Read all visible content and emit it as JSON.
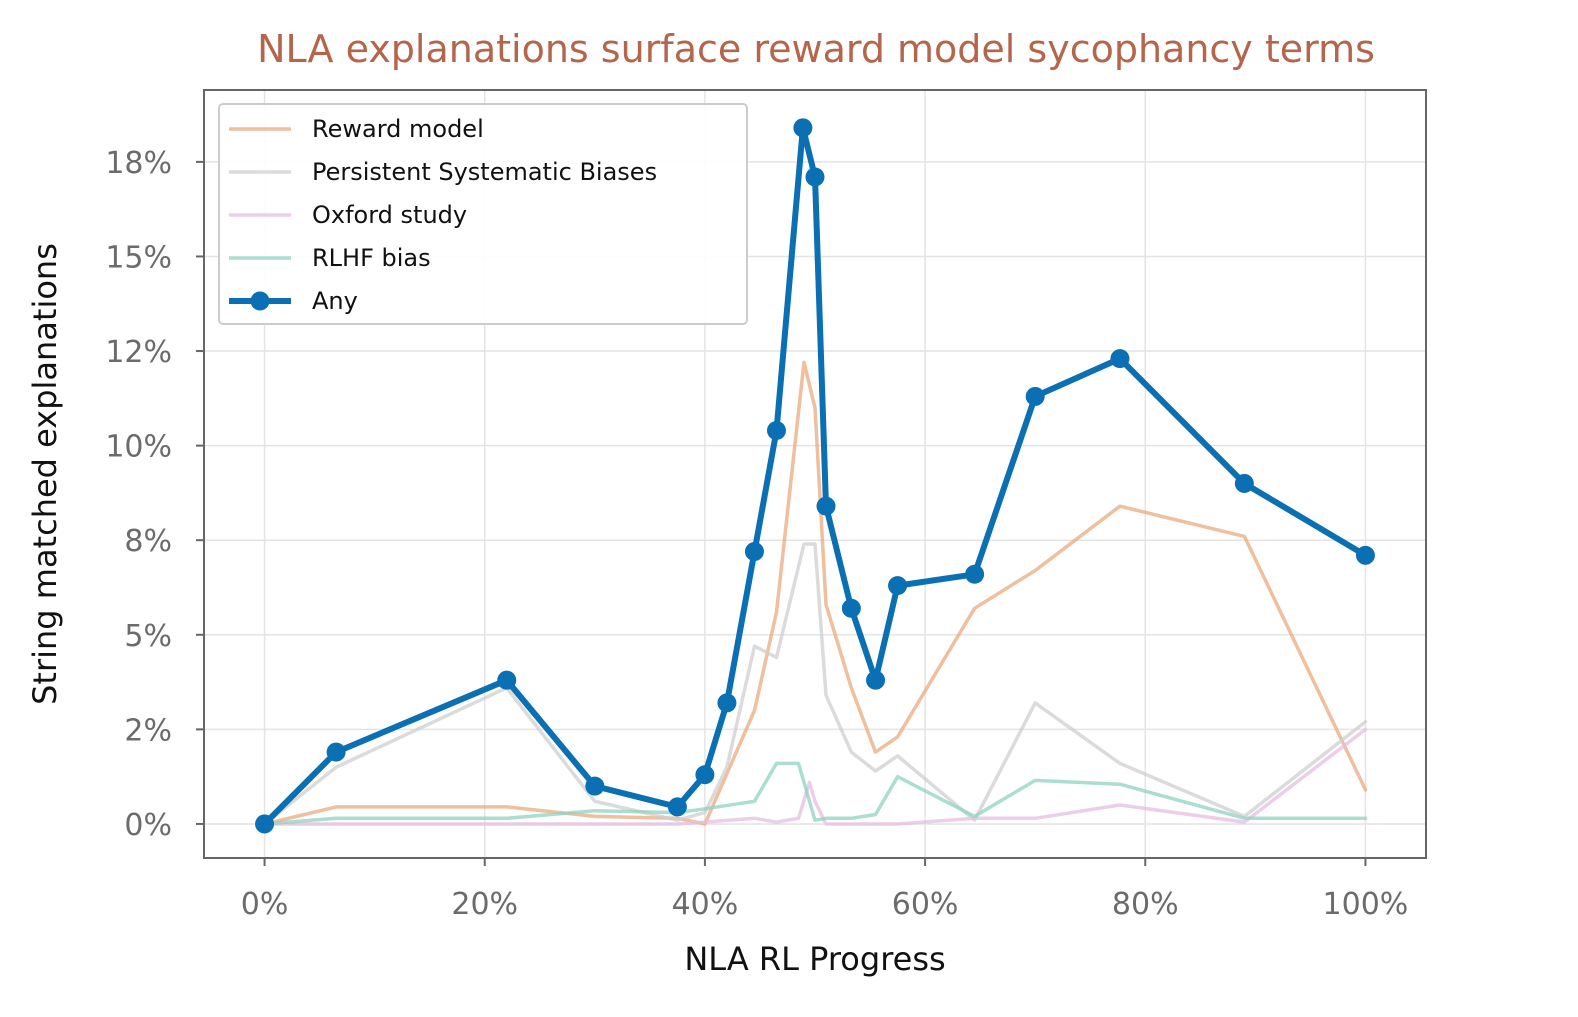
{
  "chart_data": {
    "type": "line",
    "title": "NLA explanations surface reward model sycophancy terms",
    "xlabel": "NLA RL Progress",
    "ylabel": "String matched explanations",
    "xlim": [
      -5.5,
      105.5
    ],
    "ylim": [
      -0.9,
      19.4
    ],
    "xticks": [
      0,
      20,
      40,
      60,
      80,
      100
    ],
    "xtick_labels": [
      "0%",
      "20%",
      "40%",
      "60%",
      "80%",
      "100%"
    ],
    "yticks": [
      0,
      2.5,
      5,
      7.5,
      10,
      12.5,
      15,
      17.5
    ],
    "ytick_labels": [
      "0%",
      "2%",
      "5%",
      "8%",
      "10%",
      "12%",
      "15%",
      "18%"
    ],
    "grid": true,
    "legend_position": "top-left",
    "series": [
      {
        "name": "Reward model",
        "color": "#eaa97d",
        "x": [
          0,
          6.5,
          22,
          30,
          37.5,
          40,
          44.5,
          46.5,
          49,
          50,
          51,
          53.3,
          55.5,
          57.5,
          64.5,
          70,
          77.7,
          89,
          100
        ],
        "y": [
          0,
          0.45,
          0.45,
          0.2,
          0.15,
          0,
          3.0,
          5.6,
          12.2,
          11.0,
          5.8,
          3.6,
          1.9,
          2.3,
          5.7,
          6.7,
          8.4,
          7.6,
          0.9
        ]
      },
      {
        "name": "Persistent Systematic Biases",
        "color": "#cfcfcf",
        "x": [
          0,
          6.5,
          22,
          30,
          37.5,
          40,
          42,
          44.5,
          46.5,
          49,
          50,
          51,
          53.3,
          55.5,
          57.5,
          64.5,
          70,
          77.7,
          89,
          100
        ],
        "y": [
          0,
          1.5,
          3.6,
          0.6,
          0.1,
          0.3,
          1.5,
          4.7,
          4.4,
          7.4,
          7.4,
          3.4,
          1.9,
          1.4,
          1.8,
          0.1,
          3.2,
          1.6,
          0.2,
          2.7
        ]
      },
      {
        "name": "Oxford study",
        "color": "#e6bde3",
        "x": [
          0,
          6.5,
          22,
          30,
          37.5,
          40,
          44.5,
          46.5,
          48.5,
          49.5,
          50,
          51,
          53.3,
          55.5,
          57.5,
          64.5,
          70,
          77.7,
          89,
          100
        ],
        "y": [
          0,
          0,
          0,
          0,
          0,
          0.05,
          0.15,
          0.05,
          0.15,
          1.1,
          0.6,
          0,
          0,
          0,
          0,
          0.15,
          0.15,
          0.5,
          0.05,
          2.5
        ]
      },
      {
        "name": "RLHF bias",
        "color": "#8fd3c1",
        "x": [
          0,
          6.5,
          22,
          30,
          37.5,
          40,
          44.5,
          46.5,
          48.5,
          50,
          51,
          53.3,
          55.5,
          57.5,
          64.5,
          70,
          77.7,
          89,
          100
        ],
        "y": [
          0,
          0.15,
          0.15,
          0.35,
          0.3,
          0.4,
          0.6,
          1.6,
          1.6,
          0.1,
          0.15,
          0.15,
          0.25,
          1.25,
          0.2,
          1.15,
          1.05,
          0.15,
          0.15
        ]
      },
      {
        "name": "Any",
        "color": "#0a6fb3",
        "x": [
          0,
          6.5,
          22,
          30,
          37.5,
          40,
          42,
          44.5,
          46.5,
          48.9,
          50,
          51,
          53.3,
          55.5,
          57.5,
          64.5,
          70,
          77.7,
          89,
          100
        ],
        "y": [
          0,
          1.9,
          3.8,
          1.0,
          0.45,
          1.3,
          3.2,
          7.2,
          10.4,
          18.4,
          17.1,
          8.4,
          5.7,
          3.8,
          6.3,
          6.6,
          11.3,
          12.3,
          9.0,
          7.1
        ]
      }
    ]
  }
}
